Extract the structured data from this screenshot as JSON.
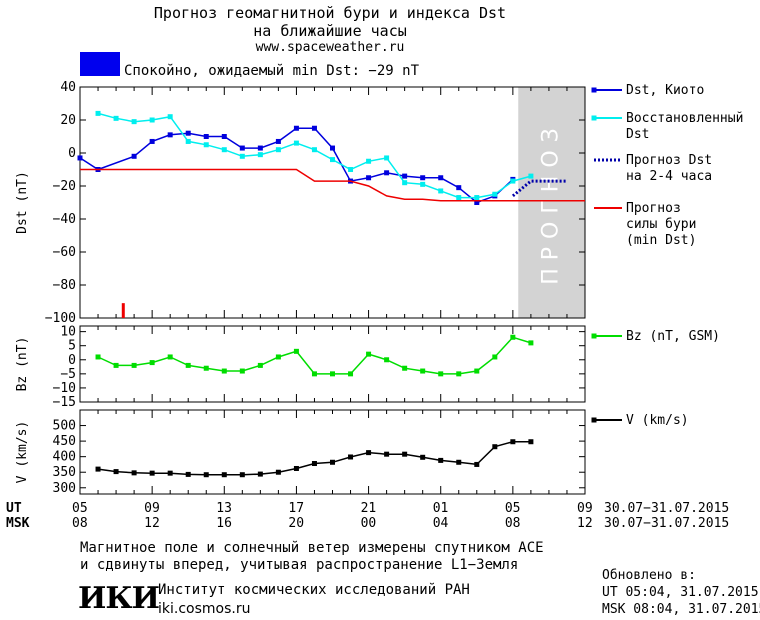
{
  "header": {
    "title_line1": "Прогноз геомагнитной бури и индекса Dst",
    "title_line2": "на ближайшие часы",
    "website": "www.spaceweather.ru"
  },
  "status": {
    "color": "#0000ee",
    "text": "Спокойно, ожидаемый min Dst: −29 nT"
  },
  "chart_data": [
    {
      "type": "line",
      "ylabel": "Dst (nT)",
      "ylim": [
        -100,
        40
      ],
      "yticks": [
        40,
        20,
        0,
        -20,
        -40,
        -60,
        -80,
        -100
      ],
      "x_hours_range": [
        0,
        28
      ],
      "forecast_region": {
        "from_hour": 24.3,
        "to_hour": 28,
        "label": "ПРОГНОЗ",
        "color": "#d3d3d3"
      },
      "marker_bar": {
        "x_hour": 2.4,
        "y_from": -100,
        "y_to": -91,
        "color": "#ee0000"
      },
      "series": [
        {
          "name": "Dst, Киото",
          "color": "#0000dd",
          "marker": "square",
          "x": [
            0,
            1,
            3,
            4,
            5,
            6,
            7,
            8,
            9,
            10,
            11,
            12,
            13,
            14,
            15,
            16,
            17,
            18,
            19,
            20,
            21,
            22,
            23,
            24
          ],
          "y": [
            -3,
            -10,
            -2,
            7,
            11,
            12,
            10,
            10,
            3,
            3,
            7,
            15,
            15,
            3,
            -17,
            -15,
            -12,
            -14,
            -15,
            -15,
            -21,
            -30,
            -26,
            -16
          ]
        },
        {
          "name": "Восстановленный Dst",
          "color": "#00eeee",
          "marker": "square",
          "x": [
            1,
            2,
            3,
            4,
            5,
            6,
            7,
            8,
            9,
            10,
            11,
            12,
            13,
            14,
            15,
            16,
            17,
            18,
            19,
            20,
            21,
            22,
            23,
            24,
            25
          ],
          "y": [
            24,
            21,
            19,
            20,
            22,
            7,
            5,
            2,
            -2,
            -1,
            2,
            6,
            2,
            -4,
            -10,
            -5,
            -3,
            -18,
            -19,
            -23,
            -27,
            -27,
            -25,
            -17,
            -14
          ]
        },
        {
          "name": "Прогноз Dst на 2-4 часа",
          "color": "#0000aa",
          "style": "dotted",
          "x": [
            24,
            25,
            26,
            27
          ],
          "y": [
            -26,
            -17,
            -17,
            -17
          ]
        },
        {
          "name": "Прогноз силы бури (min Dst)",
          "color": "#ee0000",
          "style": "solid",
          "x": [
            0,
            1,
            2,
            3,
            4,
            5,
            6,
            7,
            8,
            9,
            10,
            11,
            12,
            13,
            14,
            15,
            16,
            17,
            18,
            19,
            20,
            21,
            22,
            23,
            24,
            25,
            26,
            27,
            28
          ],
          "y": [
            -10,
            -10,
            -10,
            -10,
            -10,
            -10,
            -10,
            -10,
            -10,
            -10,
            -10,
            -10,
            -10,
            -17,
            -17,
            -17,
            -20,
            -26,
            -28,
            -28,
            -29,
            -29,
            -29,
            -29,
            -29,
            -29,
            -29,
            -29,
            -29
          ]
        }
      ]
    },
    {
      "type": "line",
      "ylabel": "Bz (nT)",
      "ylim": [
        -15,
        12
      ],
      "yticks": [
        10,
        5,
        0,
        -5,
        -10,
        -15
      ],
      "series": [
        {
          "name": "Bz (nT, GSM)",
          "color": "#00dd00",
          "marker": "square",
          "x": [
            1,
            2,
            3,
            4,
            5,
            6,
            7,
            8,
            9,
            10,
            11,
            12,
            13,
            14,
            15,
            16,
            17,
            18,
            19,
            20,
            21,
            22,
            23,
            24,
            25
          ],
          "y": [
            1,
            -2,
            -2,
            -1,
            1,
            -2,
            -3,
            -4,
            -4,
            -2,
            1,
            3,
            -5,
            -5,
            -5,
            2,
            0,
            -3,
            -4,
            -5,
            -5,
            -4,
            1,
            8,
            6
          ]
        }
      ]
    },
    {
      "type": "line",
      "ylabel": "V (km/s)",
      "ylim": [
        280,
        550
      ],
      "yticks": [
        500,
        450,
        400,
        350,
        300
      ],
      "series": [
        {
          "name": "V (km/s)",
          "color": "#000000",
          "marker": "square",
          "x": [
            1,
            2,
            3,
            4,
            5,
            6,
            7,
            8,
            9,
            10,
            11,
            12,
            13,
            14,
            15,
            16,
            17,
            18,
            19,
            20,
            21,
            22,
            23,
            24,
            25
          ],
          "y": [
            360,
            352,
            348,
            347,
            347,
            343,
            342,
            342,
            342,
            344,
            350,
            362,
            378,
            382,
            399,
            413,
            408,
            408,
            398,
            388,
            382,
            375,
            432,
            448,
            448
          ]
        }
      ]
    }
  ],
  "time_axis": {
    "ut_label": "UT",
    "msk_label": "MSK",
    "ut_ticks": [
      "05",
      "09",
      "13",
      "17",
      "21",
      "01",
      "05",
      "09"
    ],
    "msk_ticks": [
      "08",
      "12",
      "16",
      "20",
      "00",
      "04",
      "08",
      "12"
    ],
    "date_range_ut": "30.07−31.07.2015",
    "date_range_msk": "30.07−31.07.2015"
  },
  "footer": {
    "note_line1": "Магнитное поле и солнечный ветер измерены спутником ACE",
    "note_line2": "и сдвинуты вперед, учитывая распространение L1−Земля",
    "logo_text": "ИКИ",
    "institute": "Институт космических исследований РАН",
    "institute_url": "iki.cosmos.ru",
    "updated_label": "Обновлено в:",
    "updated_ut": "UT  05:04, 31.07.2015",
    "updated_msk": "MSK 08:04, 31.07.2015"
  }
}
